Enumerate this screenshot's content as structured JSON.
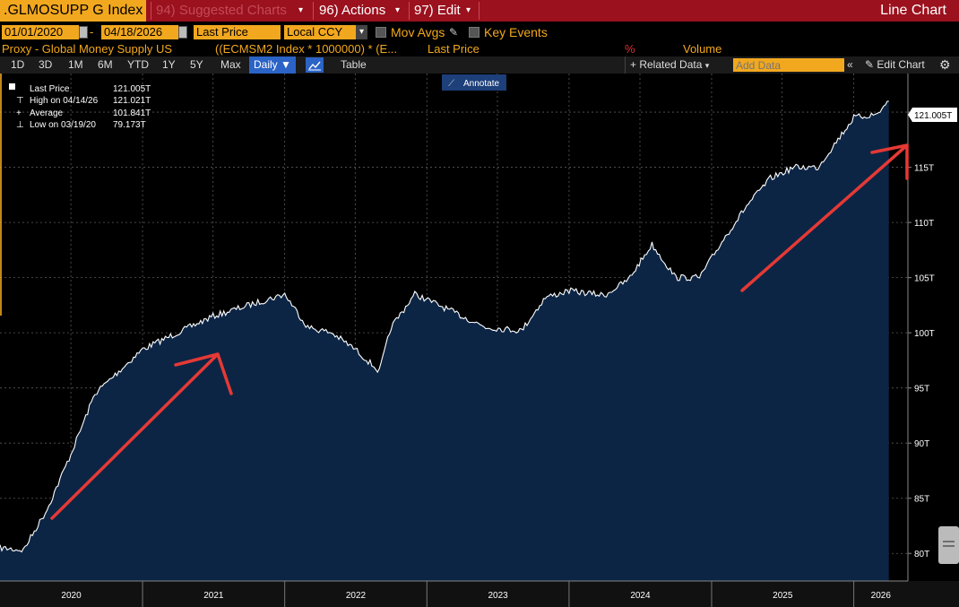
{
  "toolbar": {
    "ticker": ".GLMOSUPP G Index",
    "suggested": "94) Suggested Charts",
    "actions": "96) Actions",
    "edit": "97) Edit",
    "chart_type": "Line Chart"
  },
  "controls": {
    "start_date": "01/01/2020",
    "end_date": "04/18/2026",
    "field": "Last Price",
    "currency": "Local CCY",
    "mov_avgs": "Mov Avgs",
    "key_events": "Key Events"
  },
  "proxy_row": {
    "title": "Proxy - Global Money Supply US",
    "formula": "((ECMSM2 Index * 1000000) * (E...",
    "last_price": "Last Price",
    "percent": "%",
    "volume": "Volume"
  },
  "periods": [
    "1D",
    "3D",
    "1M",
    "6M",
    "YTD",
    "1Y",
    "5Y",
    "Max"
  ],
  "frequency": "Daily",
  "table_label": "Table",
  "related_data": "+ Related Data",
  "add_data_placeholder": "Add Data",
  "edit_chart": "Edit Chart",
  "annotate": "Annotate",
  "legend": {
    "last_label": "Last Price",
    "last_value": "121.005T",
    "high_label": "High on 04/14/26",
    "high_value": "121.021T",
    "avg_label": "Average",
    "avg_value": "101.841T",
    "low_label": "Low on 03/19/20",
    "low_value": "79.173T"
  },
  "last_badge": "121.005T",
  "colors": {
    "toolbar": "#9b111e",
    "amber": "#f2a81e",
    "area_fill": "#0c2545",
    "line": "#ffffff",
    "arrow": "#e53935",
    "badge": "#ffffff"
  },
  "chart_data": {
    "type": "area",
    "x": [
      "2020-01",
      "2020-03",
      "2020-05",
      "2020-07",
      "2020-09",
      "2020-11",
      "2021-01",
      "2021-04",
      "2021-07",
      "2021-10",
      "2022-01",
      "2022-03",
      "2022-05",
      "2022-07",
      "2022-09",
      "2022-10",
      "2022-12",
      "2023-02",
      "2023-04",
      "2023-06",
      "2023-09",
      "2023-11",
      "2024-01",
      "2024-04",
      "2024-06",
      "2024-08",
      "2024-10",
      "2024-12",
      "2025-02",
      "2025-04",
      "2025-06",
      "2025-08",
      "2025-10",
      "2025-12",
      "2026-01",
      "2026-03",
      "2026-04"
    ],
    "y": [
      80.5,
      80.3,
      84.0,
      89.0,
      94.5,
      96.5,
      98.5,
      100.0,
      101.5,
      102.5,
      103.5,
      100.5,
      100.0,
      98.5,
      96.5,
      100.5,
      103.5,
      102.5,
      101.5,
      100.5,
      100.2,
      103.2,
      103.8,
      103.4,
      104.8,
      108.0,
      105.0,
      105.0,
      108.5,
      111.5,
      114.0,
      115.0,
      115.0,
      118.0,
      119.5,
      119.8,
      121.0
    ],
    "y_tick_labels": [
      "80T",
      "85T",
      "90T",
      "95T",
      "100T",
      "105T",
      "110T",
      "115T",
      "120T"
    ],
    "x_tick_labels": [
      "2020",
      "2021",
      "2022",
      "2023",
      "2024",
      "2025",
      "2026"
    ],
    "ylim": [
      77.5,
      123.5
    ],
    "grid": true,
    "legend_position": "top-left"
  }
}
